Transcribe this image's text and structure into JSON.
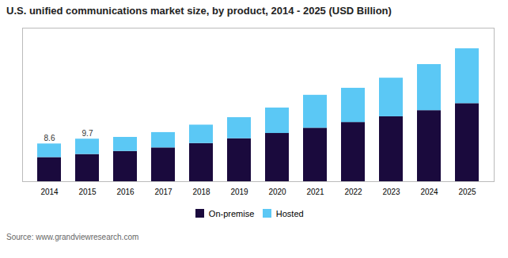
{
  "chart_data": {
    "type": "bar",
    "stacked": true,
    "title": "U.S. unified communications market size, by product, 2014 - 2025 (USD Billion)",
    "caption": "Source: www.grandviewresearch.com",
    "categories": [
      "2014",
      "2015",
      "2016",
      "2017",
      "2018",
      "2019",
      "2020",
      "2021",
      "2022",
      "2023",
      "2024",
      "2025"
    ],
    "series": [
      {
        "name": "On-premise",
        "color": "#1a0a3d",
        "values": [
          5.5,
          6.2,
          6.9,
          7.7,
          8.7,
          9.8,
          11.0,
          12.2,
          13.5,
          14.8,
          16.2,
          17.8
        ]
      },
      {
        "name": "Hosted",
        "color": "#5bc8f5",
        "values": [
          3.1,
          3.5,
          3.2,
          3.5,
          4.2,
          4.8,
          5.8,
          7.5,
          7.8,
          8.8,
          10.5,
          12.5
        ]
      }
    ],
    "ylim": [
      0,
      35
    ],
    "yticks": [],
    "tick_labels": "x",
    "grid": false,
    "legend": "bottom",
    "annotations": [
      {
        "x": "2014",
        "y": 8.6,
        "text": "8.6"
      },
      {
        "x": "2015",
        "y": 9.7,
        "text": "9.7"
      }
    ]
  }
}
